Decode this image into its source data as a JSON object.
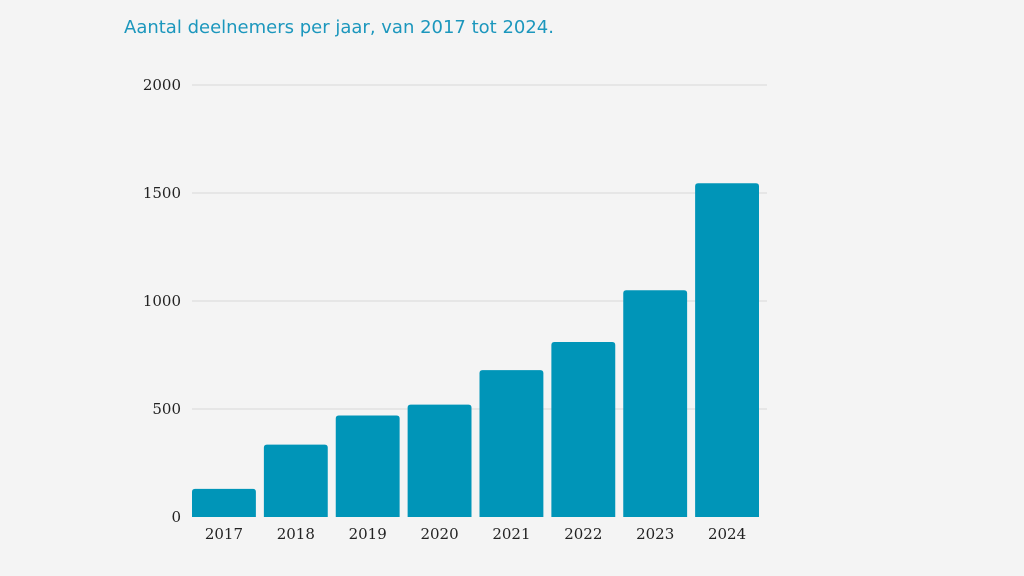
{
  "chart_data": {
    "type": "bar",
    "title": "Aantal deelnemers per jaar, van 2017 tot 2024.",
    "xlabel": "",
    "ylabel": "",
    "categories": [
      "2017",
      "2018",
      "2019",
      "2020",
      "2021",
      "2022",
      "2023",
      "2024"
    ],
    "values": [
      130,
      335,
      470,
      520,
      680,
      810,
      1050,
      1545
    ],
    "ylim": [
      0,
      2000
    ],
    "yticks": [
      0,
      500,
      1000,
      1500,
      2000
    ],
    "grid": true,
    "legend": "none",
    "bar_color": "#0095b8",
    "title_color": "#1c97bd",
    "grid_color": "#d9d9d9",
    "background_color": "#f4f4f4"
  }
}
